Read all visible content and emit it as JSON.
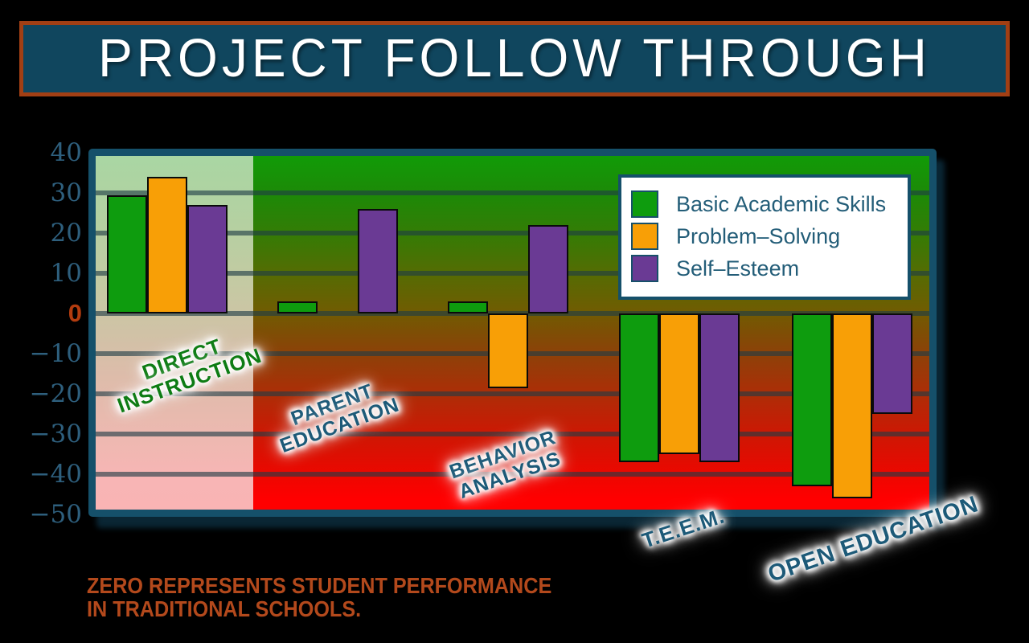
{
  "title": {
    "text": "PROJECT FOLLOW THROUGH"
  },
  "footer": {
    "line1": "ZERO REPRESENTS STUDENT PERFORMANCE",
    "line2": "IN TRADITIONAL SCHOOLS."
  },
  "colors": {
    "banner_bg": "#10465e",
    "banner_border": "#a23f14",
    "plot_border": "#15506a",
    "axis_label": "#2e5f7d",
    "zero_label": "#b33c0f",
    "footer_text": "#b3491c",
    "legend_text": "#235d78",
    "direct_instruction_label": "#0e7c14",
    "group_label": "#1d5a78",
    "bar_green": "#0e9c0e",
    "bar_orange": "#f89f06",
    "bar_purple": "#6a3a94"
  },
  "y_axis": {
    "ticks": [
      40,
      30,
      20,
      10,
      0,
      -10,
      -20,
      -30,
      -40,
      -50
    ]
  },
  "legend": {
    "position": "upper right"
  },
  "chart_data": {
    "type": "bar",
    "title": "PROJECT FOLLOW THROUGH",
    "categories": [
      "DIRECT INSTRUCTION",
      "PARENT EDUCATION",
      "BEHAVIOR ANALYSIS",
      "T.E.E.M.",
      "OPEN EDUCATION"
    ],
    "series": [
      {
        "name": "Basic Academic Skills",
        "color": "#0e9c0e",
        "values": [
          29.5,
          3,
          3,
          -37,
          -43
        ]
      },
      {
        "name": "Problem–Solving",
        "color": "#f89f06",
        "values": [
          34,
          0,
          -18.5,
          -35,
          -46
        ]
      },
      {
        "name": "Self–Esteem",
        "color": "#6a3a94",
        "values": [
          27,
          26,
          22,
          -37,
          -25
        ]
      }
    ],
    "ylim": [
      -50,
      40
    ],
    "ytick_step": 10,
    "grid": true,
    "legend_position": "upper right",
    "highlighted_category": "DIRECT INSTRUCTION",
    "annotation": "ZERO REPRESENTS STUDENT PERFORMANCE IN TRADITIONAL SCHOOLS."
  }
}
